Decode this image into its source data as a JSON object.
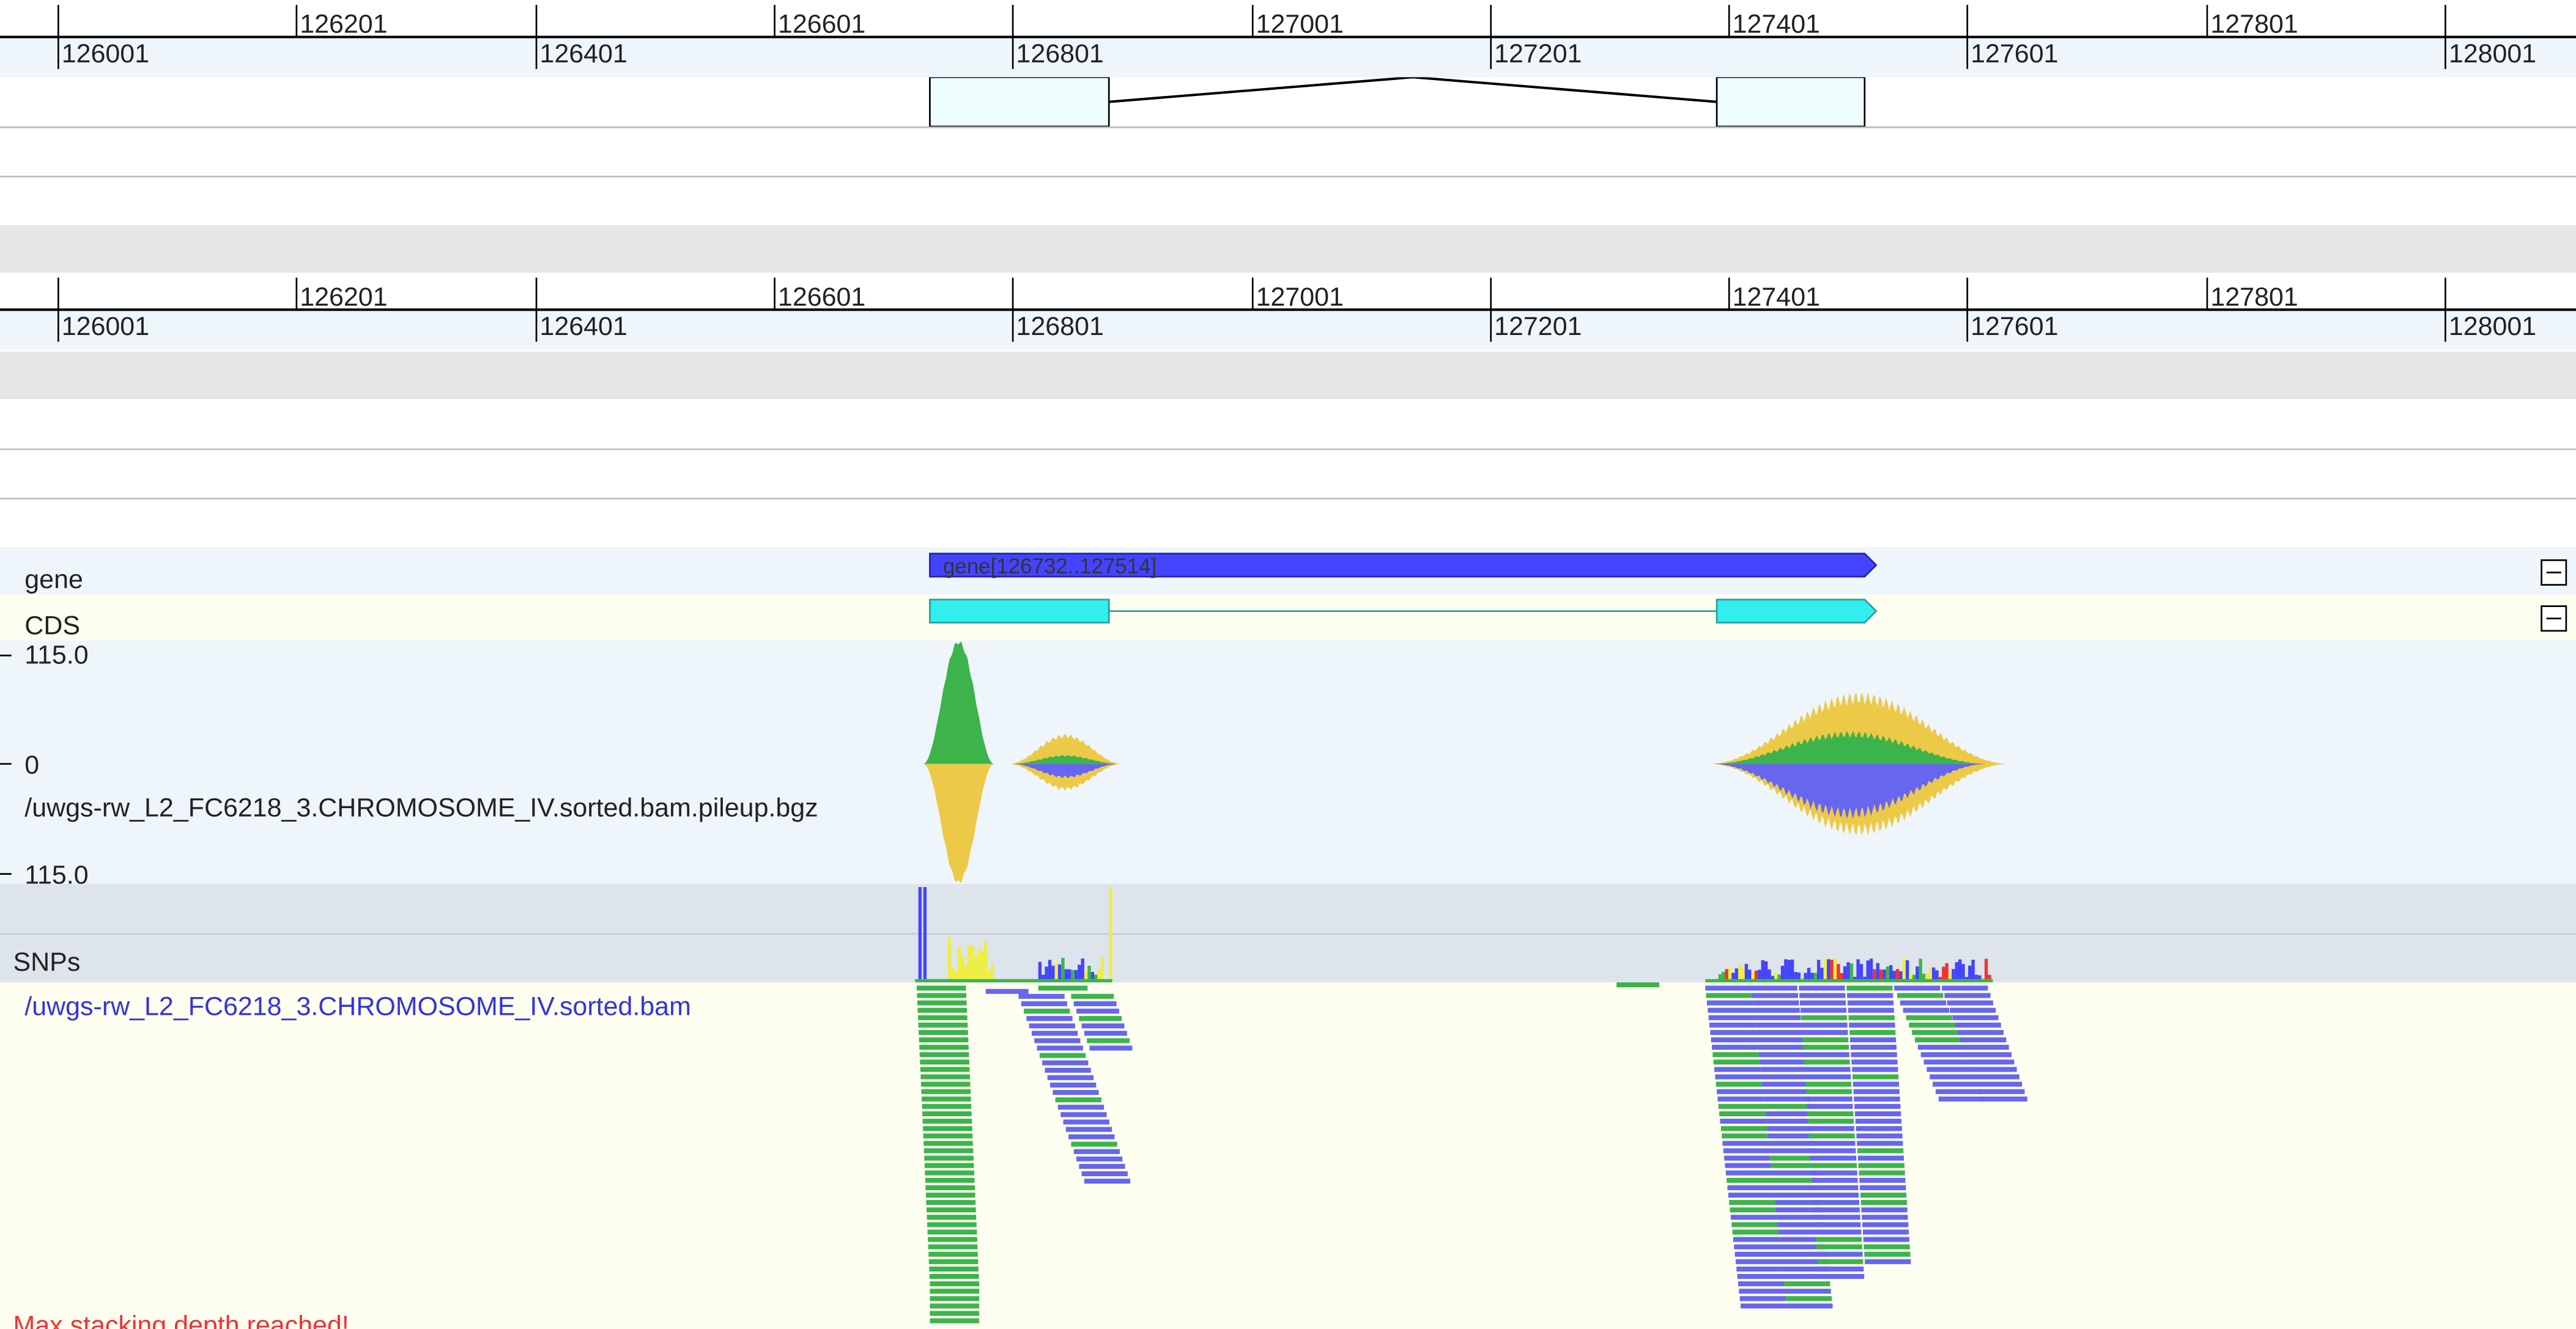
{
  "rulers": [
    {
      "top_labels": [
        "126201",
        "126601",
        "127001",
        "127401",
        "127801"
      ],
      "bottom_labels": [
        "126001",
        "126401",
        "126801",
        "127201",
        "127601",
        "128001"
      ]
    },
    {
      "top_labels": [
        "126201",
        "126601",
        "127001",
        "127401",
        "127801"
      ],
      "bottom_labels": [
        "126001",
        "126401",
        "126801",
        "127201",
        "127601",
        "128001"
      ]
    }
  ],
  "tracks": {
    "gene": {
      "label": "gene",
      "feature_label": "gene[126732..127514]"
    },
    "cds": {
      "label": "CDS"
    },
    "pileup": {
      "max_label": "115.0",
      "zero_label": "0",
      "min_label": "115.0",
      "file": "/uwgs-rw_L2_FC6218_3.CHROMOSOME_IV.sorted.bam.pileup.bgz"
    },
    "snps": {
      "label": "SNPs"
    },
    "bam": {
      "file": "/uwgs-rw_L2_FC6218_3.CHROMOSOME_IV.sorted.bam",
      "warning": "Max stacking depth reached!"
    }
  }
}
